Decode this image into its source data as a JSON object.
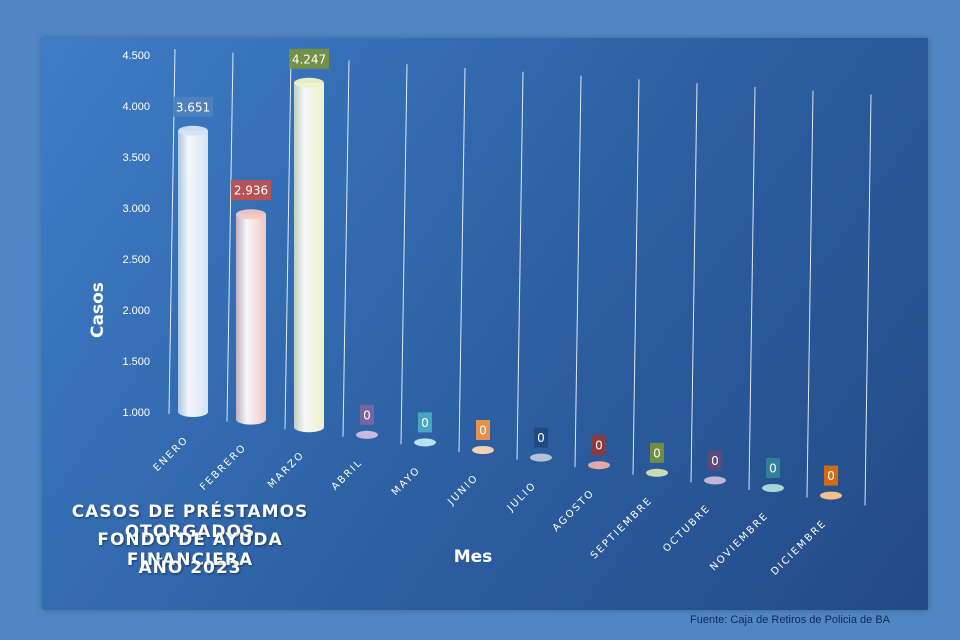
{
  "chart_data": {
    "type": "bar",
    "title_lines": [
      "CASOS DE PRÉSTAMOS OTORGADOS",
      "FONDO DE AYUDA FINANCIERA",
      "AÑO 2023"
    ],
    "xlabel": "Mes",
    "ylabel": "Casos",
    "categories": [
      "ENERO",
      "FEBRERO",
      "MARZO",
      "ABRIL",
      "MAYO",
      "JUNIO",
      "JULIO",
      "AGOSTO",
      "SEPTIEMBRE",
      "OCTUBRE",
      "NOVIEMBRE",
      "DICIEMBRE"
    ],
    "values": [
      3651,
      2936,
      4247,
      0,
      0,
      0,
      0,
      0,
      0,
      0,
      0,
      0
    ],
    "value_labels": [
      "3.651",
      "2.936",
      "4.247",
      "0",
      "0",
      "0",
      "0",
      "0",
      "0",
      "0",
      "0",
      "0"
    ],
    "yticks": [
      1000,
      1500,
      2000,
      2500,
      3000,
      3500,
      4000,
      4500
    ],
    "ytick_labels": [
      "1.000",
      "1.500",
      "2.000",
      "2.500",
      "3.000",
      "3.500",
      "4.000",
      "4.500"
    ],
    "ylim": [
      1000,
      4500
    ],
    "grid": true,
    "legend": "none",
    "bar_colors": [
      "#d6e2f4",
      "#f2c7c3",
      "#eef2c6",
      "#c9b8dd",
      "#b5e3ee",
      "#f6d3b1",
      "#b4c3d9",
      "#e3a9a6",
      "#c9dbb1",
      "#c3b5d6",
      "#a9d6d7",
      "#f5c08c"
    ],
    "label_colors": [
      "#4f81bd",
      "#c0504d",
      "#77933c",
      "#8064a2",
      "#4bacc6",
      "#f79646",
      "#1f497d",
      "#953735",
      "#76923c",
      "#5f497a",
      "#31849b",
      "#e46c0a"
    ]
  },
  "source": "Fuente: Caja de Retiros de Policia de BA"
}
